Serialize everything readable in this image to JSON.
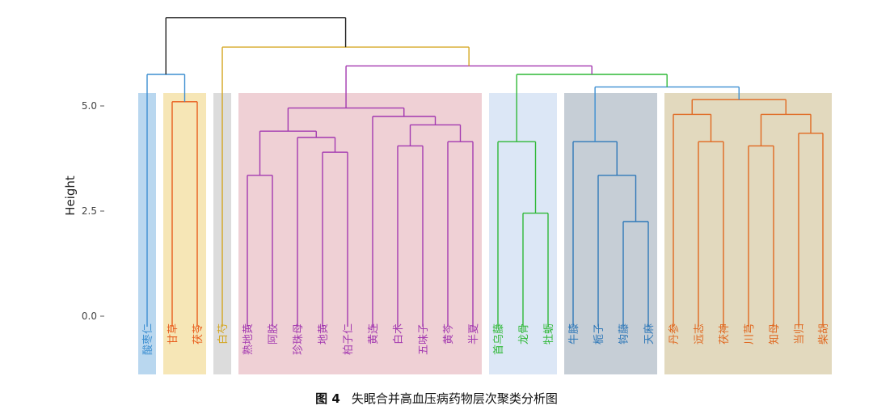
{
  "caption": {
    "label": "图 4",
    "text": "失眠合并高血压病药物层次聚类分析图"
  },
  "chart_data": {
    "type": "dendrogram",
    "ylabel": "Height",
    "ylim": [
      -1.4,
      7.6
    ],
    "yticks": [
      0.0,
      2.5,
      5.0
    ],
    "ytick_labels": [
      "0.0",
      "2.5",
      "5.0"
    ],
    "leaves": [
      "酸枣仁",
      "甘草",
      "茯苓",
      "白芍",
      "熟地黄",
      "阿胶",
      "珍珠母",
      "地黄",
      "柏子仁",
      "黄连",
      "白术",
      "五味子",
      "黄芩",
      "半夏",
      "首乌藤",
      "龙骨",
      "牡蛎",
      "牛膝",
      "栀子",
      "钩藤",
      "天麻",
      "丹参",
      "远志",
      "茯神",
      "川芎",
      "知母",
      "当归",
      "柴胡"
    ],
    "clusters": [
      {
        "leaves": [
          "酸枣仁"
        ],
        "color": "#3d8fd1",
        "band": "#b9d7ef"
      },
      {
        "leaves": [
          "甘草",
          "茯苓"
        ],
        "color": "#e85d1c",
        "band": "#f6e6b6"
      },
      {
        "leaves": [
          "白芍"
        ],
        "color": "#d4a61f",
        "band": "#dcdcdc"
      },
      {
        "leaves": [
          "熟地黄",
          "阿胶",
          "珍珠母",
          "地黄",
          "柏子仁",
          "黄连",
          "白术",
          "五味子",
          "黄芩",
          "半夏"
        ],
        "color": "#a339b0",
        "band": "#efd0d5"
      },
      {
        "leaves": [
          "首乌藤",
          "龙骨",
          "牡蛎"
        ],
        "color": "#2fb837",
        "band": "#dce7f6"
      },
      {
        "leaves": [
          "牛膝",
          "栀子",
          "钩藤",
          "天麻"
        ],
        "color": "#2f78b8",
        "band": "#c6ced6"
      },
      {
        "leaves": [
          "丹参",
          "远志",
          "茯神",
          "川芎",
          "知母",
          "当归",
          "柴胡"
        ],
        "color": "#e06820",
        "band": "#e2d9be"
      }
    ],
    "merges": [
      {
        "a": "熟地黄",
        "b": "阿胶",
        "h": 3.35,
        "color": "#a339b0"
      },
      {
        "a": "地黄",
        "b": "柏子仁",
        "h": 3.9,
        "color": "#a339b0"
      },
      {
        "a": "珍珠母",
        "b": "地黄+柏子仁",
        "h": 4.25,
        "color": "#a339b0"
      },
      {
        "a": "熟地黄+阿胶",
        "b": "珍珠母+地黄+柏子仁",
        "h": 4.4,
        "color": "#a339b0"
      },
      {
        "a": "白术",
        "b": "五味子",
        "h": 4.05,
        "color": "#a339b0"
      },
      {
        "a": "黄芩",
        "b": "半夏",
        "h": 4.15,
        "color": "#a339b0"
      },
      {
        "a": "白术+五味子",
        "b": "黄芩+半夏",
        "h": 4.55,
        "color": "#a339b0"
      },
      {
        "a": "黄连",
        "b": "白术+五味子+黄芩+半夏",
        "h": 4.75,
        "color": "#a339b0"
      },
      {
        "a": "熟地黄组",
        "b": "黄连组",
        "h": 4.95,
        "color": "#a339b0"
      },
      {
        "a": "龙骨",
        "b": "牡蛎",
        "h": 2.45,
        "color": "#2fb837"
      },
      {
        "a": "首乌藤",
        "b": "龙骨+牡蛎",
        "h": 4.15,
        "color": "#2fb837"
      },
      {
        "a": "钩藤",
        "b": "天麻",
        "h": 2.25,
        "color": "#2f78b8"
      },
      {
        "a": "栀子",
        "b": "钩藤+天麻",
        "h": 3.35,
        "color": "#2f78b8"
      },
      {
        "a": "牛膝",
        "b": "栀子+钩藤+天麻",
        "h": 4.15,
        "color": "#2f78b8"
      },
      {
        "a": "远志",
        "b": "茯神",
        "h": 4.15,
        "color": "#e06820"
      },
      {
        "a": "丹参",
        "b": "远志+茯神",
        "h": 4.8,
        "color": "#e06820"
      },
      {
        "a": "川芎",
        "b": "知母",
        "h": 4.05,
        "color": "#e06820"
      },
      {
        "a": "当归",
        "b": "柴胡",
        "h": 4.35,
        "color": "#e06820"
      },
      {
        "a": "川芎+知母",
        "b": "当归+柴胡",
        "h": 4.8,
        "color": "#e06820"
      },
      {
        "a": "丹参组",
        "b": "川芎组",
        "h": 5.15,
        "color": "#e06820"
      },
      {
        "a": "甘草",
        "b": "茯苓",
        "h": 5.1,
        "color": "#e85d1c"
      },
      {
        "a": "牛膝组",
        "b": "丹参组",
        "h": 5.45,
        "color": "#3d8fd1"
      },
      {
        "a": "酸枣仁",
        "b": "甘草+茯苓",
        "h": 5.75,
        "color": "#3d8fd1"
      },
      {
        "a": "首乌藤组",
        "b": "牛膝组",
        "h": 5.75,
        "color": "#2fb837"
      },
      {
        "a": "熟地黄组",
        "b": "首乌藤组",
        "h": 5.95,
        "color": "#a339b0"
      },
      {
        "a": "白芍",
        "b": "熟地黄组",
        "h": 6.4,
        "color": "#d4a61f"
      },
      {
        "a": "酸枣仁组",
        "b": "白芍组",
        "h": 7.1,
        "color": "#222222"
      }
    ]
  }
}
